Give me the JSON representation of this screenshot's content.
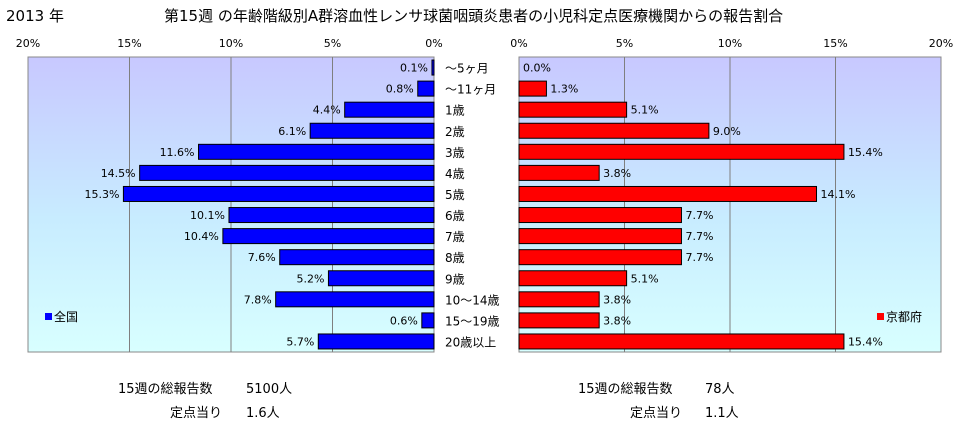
{
  "header": {
    "year": "2013 年",
    "title": "第15週 の年齢階級別A群溶血性レンサ球菌咽頭炎患者の小児科定点医療機関からの報告割合"
  },
  "chart_data": [
    {
      "type": "bar",
      "orientation": "horizontal",
      "direction": "right-to-left",
      "legend": "全国",
      "legend_position": "bottom-left",
      "color": "#0000ff",
      "categories": [
        "～5ヶ月",
        "～11ヶ月",
        "1歳",
        "2歳",
        "3歳",
        "4歳",
        "5歳",
        "6歳",
        "7歳",
        "8歳",
        "9歳",
        "10～14歳",
        "15～19歳",
        "20歳以上"
      ],
      "values": [
        0.1,
        0.8,
        4.4,
        6.1,
        11.6,
        14.5,
        15.3,
        10.1,
        10.4,
        7.6,
        5.2,
        7.8,
        0.6,
        5.7
      ],
      "value_labels": [
        "0.1%",
        "0.8%",
        "4.4%",
        "6.1%",
        "11.6%",
        "14.5%",
        "15.3%",
        "10.1%",
        "10.4%",
        "7.6%",
        "5.2%",
        "7.8%",
        "0.6%",
        "5.7%"
      ],
      "xlim": [
        0,
        20
      ],
      "ticks": [
        "20%",
        "15%",
        "10%",
        "5%",
        "0%"
      ]
    },
    {
      "type": "bar",
      "orientation": "horizontal",
      "direction": "left-to-right",
      "legend": "京都府",
      "legend_position": "bottom-right",
      "color": "#ff0000",
      "categories": [
        "～5ヶ月",
        "～11ヶ月",
        "1歳",
        "2歳",
        "3歳",
        "4歳",
        "5歳",
        "6歳",
        "7歳",
        "8歳",
        "9歳",
        "10～14歳",
        "15～19歳",
        "20歳以上"
      ],
      "values": [
        0.0,
        1.3,
        5.1,
        9.0,
        15.4,
        3.8,
        14.1,
        7.7,
        7.7,
        7.7,
        5.1,
        3.8,
        3.8,
        15.4
      ],
      "value_labels": [
        "0.0%",
        "1.3%",
        "5.1%",
        "9.0%",
        "15.4%",
        "3.8%",
        "14.1%",
        "7.7%",
        "7.7%",
        "7.7%",
        "5.1%",
        "3.8%",
        "3.8%",
        "15.4%"
      ],
      "xlim": [
        0,
        20
      ],
      "ticks": [
        "0%",
        "5%",
        "10%",
        "15%",
        "20%"
      ]
    }
  ],
  "footer": {
    "national": {
      "total_label": "15週の総報告数",
      "total_value": "5100人",
      "per_label": "定点当り",
      "per_value": "1.6人"
    },
    "kyoto": {
      "total_label": "15週の総報告数",
      "total_value": "78人",
      "per_label": "定点当り",
      "per_value": "1.1人"
    }
  }
}
